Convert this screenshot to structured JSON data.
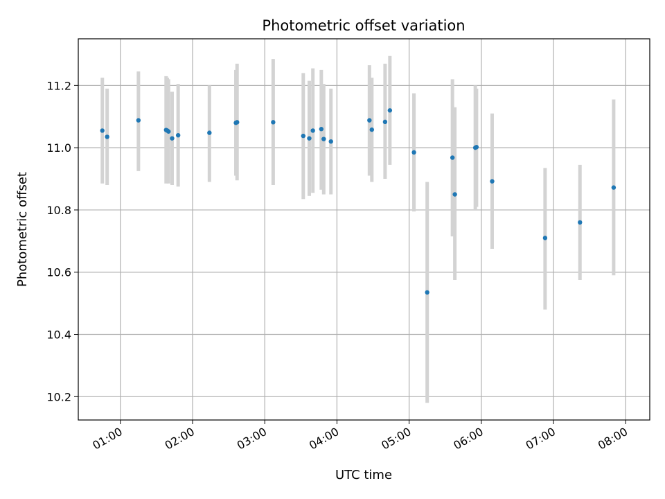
{
  "chart_data": {
    "type": "scatter",
    "title": "Photometric offset variation",
    "xlabel": "UTC time",
    "ylabel": "Photometric offset",
    "xlim": [
      "00:25",
      "08:20"
    ],
    "ylim": [
      10.125,
      11.35
    ],
    "grid": true,
    "x_ticks": [
      "01:00",
      "02:00",
      "03:00",
      "04:00",
      "05:00",
      "06:00",
      "07:00",
      "08:00"
    ],
    "y_ticks": [
      "10.2",
      "10.4",
      "10.6",
      "10.8",
      "11.0",
      "11.2"
    ],
    "point_color": "#1f77b4",
    "errorbar_color": "#d3d3d3",
    "points": [
      {
        "x": "00:45",
        "y": 11.055,
        "lo": 10.885,
        "hi": 11.225
      },
      {
        "x": "00:49",
        "y": 11.035,
        "lo": 10.88,
        "hi": 11.19
      },
      {
        "x": "01:15",
        "y": 11.088,
        "lo": 10.925,
        "hi": 11.245
      },
      {
        "x": "01:38",
        "y": 11.057,
        "lo": 10.885,
        "hi": 11.23
      },
      {
        "x": "01:39",
        "y": 11.055,
        "lo": 10.89,
        "hi": 11.225
      },
      {
        "x": "01:40",
        "y": 11.052,
        "lo": 10.885,
        "hi": 11.22
      },
      {
        "x": "01:43",
        "y": 11.03,
        "lo": 10.88,
        "hi": 11.18
      },
      {
        "x": "01:48",
        "y": 11.04,
        "lo": 10.875,
        "hi": 11.205
      },
      {
        "x": "02:14",
        "y": 11.048,
        "lo": 10.89,
        "hi": 11.2
      },
      {
        "x": "02:36",
        "y": 11.08,
        "lo": 10.91,
        "hi": 11.25
      },
      {
        "x": "02:37",
        "y": 11.082,
        "lo": 10.895,
        "hi": 11.27
      },
      {
        "x": "03:07",
        "y": 11.082,
        "lo": 10.88,
        "hi": 11.285
      },
      {
        "x": "03:32",
        "y": 11.038,
        "lo": 10.835,
        "hi": 11.24
      },
      {
        "x": "03:37",
        "y": 11.03,
        "lo": 10.845,
        "hi": 11.215
      },
      {
        "x": "03:40",
        "y": 11.055,
        "lo": 10.855,
        "hi": 11.255
      },
      {
        "x": "03:47",
        "y": 11.06,
        "lo": 10.865,
        "hi": 11.25
      },
      {
        "x": "03:49",
        "y": 11.028,
        "lo": 10.85,
        "hi": 11.205
      },
      {
        "x": "03:55",
        "y": 11.02,
        "lo": 10.85,
        "hi": 11.19
      },
      {
        "x": "04:27",
        "y": 11.088,
        "lo": 10.91,
        "hi": 11.265
      },
      {
        "x": "04:29",
        "y": 11.058,
        "lo": 10.89,
        "hi": 11.225
      },
      {
        "x": "04:40",
        "y": 11.083,
        "lo": 10.9,
        "hi": 11.27
      },
      {
        "x": "04:44",
        "y": 11.12,
        "lo": 10.945,
        "hi": 11.295
      },
      {
        "x": "05:04",
        "y": 10.985,
        "lo": 10.795,
        "hi": 11.175
      },
      {
        "x": "05:15",
        "y": 10.535,
        "lo": 10.18,
        "hi": 10.89
      },
      {
        "x": "05:36",
        "y": 10.968,
        "lo": 10.715,
        "hi": 11.22
      },
      {
        "x": "05:38",
        "y": 10.85,
        "lo": 10.575,
        "hi": 11.13
      },
      {
        "x": "05:55",
        "y": 11.0,
        "lo": 10.8,
        "hi": 11.2
      },
      {
        "x": "05:56",
        "y": 11.002,
        "lo": 10.81,
        "hi": 11.19
      },
      {
        "x": "06:09",
        "y": 10.892,
        "lo": 10.675,
        "hi": 11.11
      },
      {
        "x": "06:53",
        "y": 10.71,
        "lo": 10.48,
        "hi": 10.935
      },
      {
        "x": "07:22",
        "y": 10.76,
        "lo": 10.575,
        "hi": 10.945
      },
      {
        "x": "07:50",
        "y": 10.872,
        "lo": 10.59,
        "hi": 11.155
      }
    ]
  }
}
